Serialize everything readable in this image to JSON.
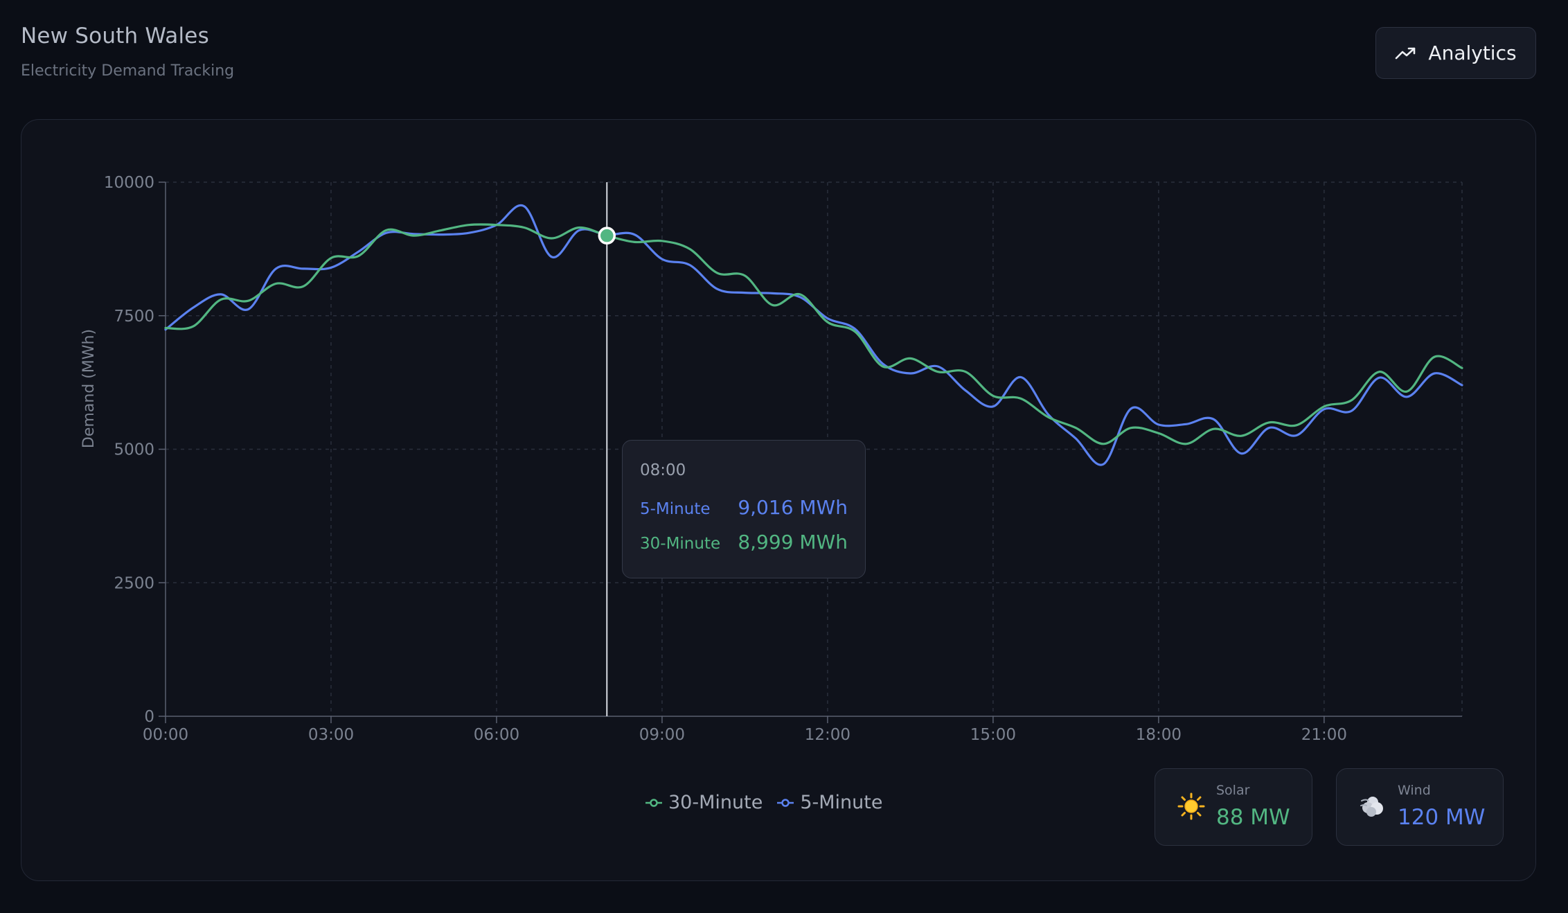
{
  "header": {
    "title": "New South Wales",
    "subtitle": "Electricity Demand Tracking",
    "analytics_label": "Analytics"
  },
  "colors": {
    "five_minute": "#5b82f0",
    "thirty_minute": "#52b682",
    "background": "#0b0e16",
    "card": "#0f121b"
  },
  "chart_data": {
    "type": "line",
    "ylabel": "Demand (MWh)",
    "xlabel": "",
    "ylim": [
      0,
      10000
    ],
    "yticks": [
      0,
      2500,
      5000,
      7500,
      10000
    ],
    "xlim": [
      "00:00",
      "23:30"
    ],
    "xticks": [
      "00:00",
      "03:00",
      "06:00",
      "09:00",
      "12:00",
      "15:00",
      "18:00",
      "21:00"
    ],
    "grid": true,
    "legend_position": "bottom-center",
    "x": [
      "00:00",
      "00:30",
      "01:00",
      "01:30",
      "02:00",
      "02:30",
      "03:00",
      "03:30",
      "04:00",
      "04:30",
      "05:00",
      "05:30",
      "06:00",
      "06:30",
      "07:00",
      "07:30",
      "08:00",
      "08:30",
      "09:00",
      "09:30",
      "10:00",
      "10:30",
      "11:00",
      "11:30",
      "12:00",
      "12:30",
      "13:00",
      "13:30",
      "14:00",
      "14:30",
      "15:00",
      "15:30",
      "16:00",
      "16:30",
      "17:00",
      "17:30",
      "18:00",
      "18:30",
      "19:00",
      "19:30",
      "20:00",
      "20:30",
      "21:00",
      "21:30",
      "22:00",
      "22:30",
      "23:00",
      "23:30"
    ],
    "series": [
      {
        "name": "30-Minute",
        "color": "#52b682",
        "values": [
          7270,
          7300,
          7800,
          7780,
          8100,
          8050,
          8580,
          8620,
          9100,
          9000,
          9100,
          9200,
          9200,
          9150,
          8950,
          9150,
          8999,
          8880,
          8900,
          8750,
          8300,
          8250,
          7700,
          7900,
          7380,
          7200,
          6550,
          6700,
          6450,
          6450,
          6000,
          5950,
          5600,
          5400,
          5100,
          5400,
          5300,
          5100,
          5380,
          5250,
          5500,
          5450,
          5800,
          5920,
          6450,
          6080,
          6730,
          6520
        ]
      },
      {
        "name": "5-Minute",
        "color": "#5b82f0",
        "values": [
          7240,
          7650,
          7900,
          7620,
          8380,
          8380,
          8400,
          8700,
          9050,
          9030,
          9020,
          9050,
          9200,
          9550,
          8600,
          9100,
          9016,
          9020,
          8560,
          8450,
          8000,
          7930,
          7920,
          7850,
          7450,
          7250,
          6600,
          6420,
          6550,
          6100,
          5800,
          6350,
          5650,
          5200,
          4720,
          5760,
          5460,
          5470,
          5560,
          4920,
          5400,
          5260,
          5750,
          5720,
          6340,
          5980,
          6420,
          6200
        ]
      }
    ],
    "highlight": {
      "x": "08:00",
      "values": {
        "5-Minute": "9,016 MWh",
        "30-Minute": "8,999 MWh"
      }
    }
  },
  "tooltip": {
    "time": "08:00",
    "five_label": "5-Minute",
    "five_value": "9,016 MWh",
    "thirty_label": "30-Minute",
    "thirty_value": "8,999 MWh"
  },
  "legend": {
    "thirty": "30-Minute",
    "five": "5-Minute"
  },
  "kpis": {
    "solar": {
      "label": "Solar",
      "value": "88 MW",
      "icon": "sun-icon"
    },
    "wind": {
      "label": "Wind",
      "value": "120 MW",
      "icon": "wind-icon"
    }
  }
}
